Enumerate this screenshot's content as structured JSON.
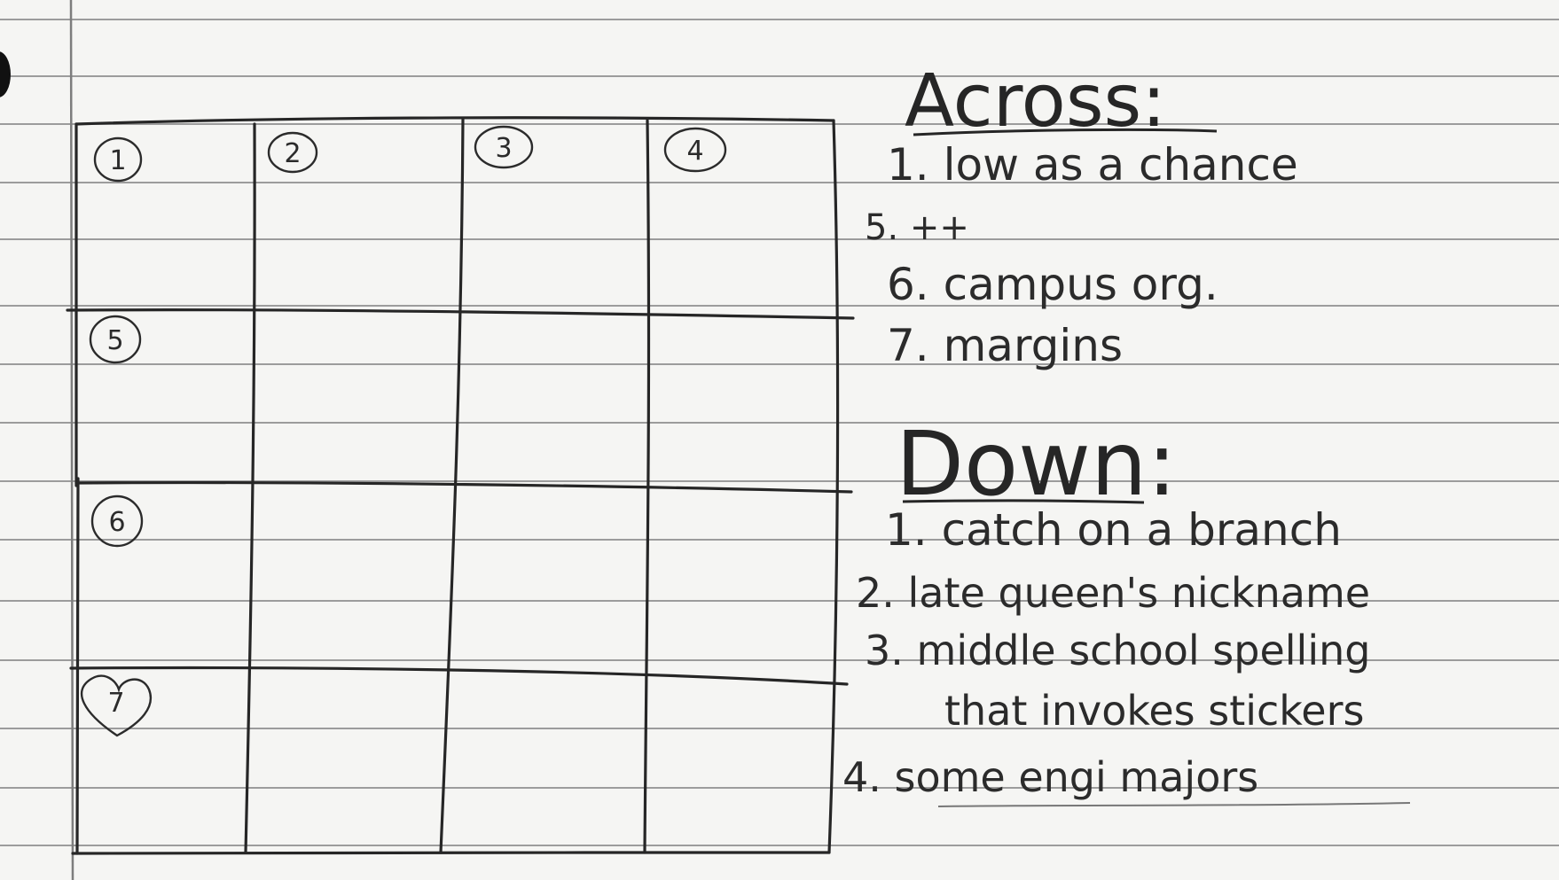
{
  "grid": {
    "rows": 4,
    "cols": 4,
    "numbers": [
      {
        "label": "1",
        "row": 0,
        "col": 0
      },
      {
        "label": "2",
        "row": 0,
        "col": 1
      },
      {
        "label": "3",
        "row": 0,
        "col": 2
      },
      {
        "label": "4",
        "row": 0,
        "col": 3
      },
      {
        "label": "5",
        "row": 1,
        "col": 0
      },
      {
        "label": "6",
        "row": 2,
        "col": 0
      },
      {
        "label": "7",
        "row": 3,
        "col": 0
      }
    ]
  },
  "across": {
    "heading": "Across:",
    "clues": [
      {
        "text": "1. low as a chance"
      },
      {
        "text": "5. ++"
      },
      {
        "text": "6. campus org."
      },
      {
        "text": "7. margins"
      }
    ]
  },
  "down": {
    "heading": "Down:",
    "clues": [
      {
        "text": "1. catch on a branch"
      },
      {
        "text": "2. late queen's nickname"
      },
      {
        "text": "3. middle school spelling"
      },
      {
        "text": "that invokes stickers"
      },
      {
        "text": "4. some engi majors"
      }
    ]
  },
  "colors": {
    "paper": "#f5f5f3",
    "rule_line": "#9a9a9a",
    "margin_line": "#8a8a8a",
    "pencil": "#2a2a2a"
  }
}
